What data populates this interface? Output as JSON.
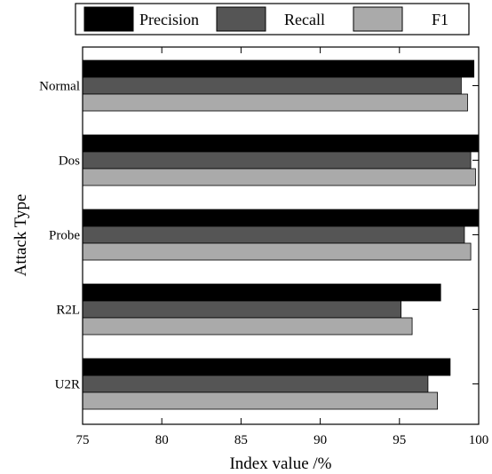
{
  "chart_data": {
    "type": "bar",
    "orientation": "horizontal",
    "categories": [
      "Normal",
      "Dos",
      "Probe",
      "R2L",
      "U2R"
    ],
    "series": [
      {
        "name": "Precision",
        "values": [
          99.7,
          100,
          100,
          97.6,
          98.2
        ],
        "color": "#000000"
      },
      {
        "name": "Recall",
        "values": [
          98.9,
          99.5,
          99.1,
          95.1,
          96.8
        ],
        "color": "#555555"
      },
      {
        "name": "F1",
        "values": [
          99.3,
          99.8,
          99.5,
          95.8,
          97.4
        ],
        "color": "#aaaaaa"
      }
    ],
    "xlabel": "Index value /%",
    "ylabel": "Attack Type",
    "xlim": [
      75,
      100
    ],
    "xticks": [
      "75",
      "80",
      "85",
      "90",
      "95",
      "100"
    ],
    "grid": false,
    "legend_position": "top"
  }
}
